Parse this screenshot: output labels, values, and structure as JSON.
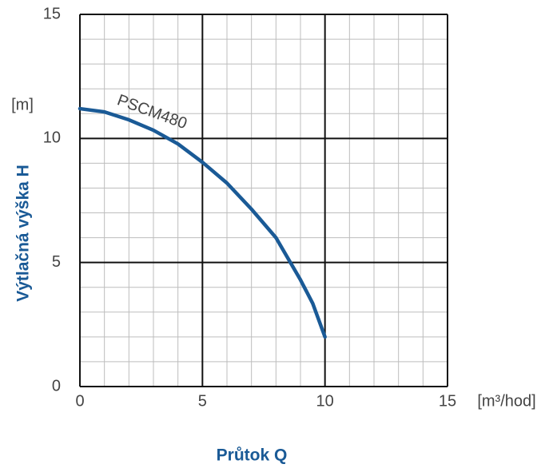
{
  "chart_data": {
    "type": "line",
    "x_label": "Průtok Q",
    "y_label": "Výtlačná výška H",
    "x_unit": "[m³/hod]",
    "y_unit": "[m]",
    "xlim": [
      0,
      15
    ],
    "ylim": [
      0,
      15
    ],
    "xticks": [
      0,
      5,
      10,
      15
    ],
    "yticks": [
      0,
      5,
      10,
      15
    ],
    "xminorticks": [
      1,
      2,
      3,
      4,
      6,
      7,
      8,
      9,
      11,
      12,
      13,
      14
    ],
    "yminorticks": [
      1,
      2,
      3,
      4,
      6,
      7,
      8,
      9,
      11,
      12,
      13,
      14
    ],
    "grid": true,
    "series": [
      {
        "name": "PSCM480",
        "color": "#1a5a96",
        "x": [
          0,
          1,
          2,
          3,
          4,
          5,
          6,
          7,
          8,
          9,
          9.5,
          10
        ],
        "values": [
          11.2,
          11.07,
          10.75,
          10.33,
          9.78,
          9.04,
          8.2,
          7.15,
          6.0,
          4.3,
          3.35,
          2.0
        ]
      }
    ]
  }
}
